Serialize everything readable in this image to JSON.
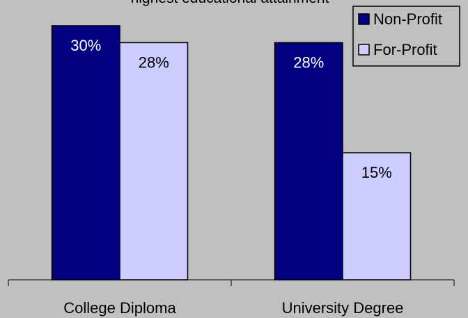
{
  "chart_data": {
    "type": "bar",
    "title": "highest educational attainment",
    "categories": [
      "College Diploma",
      "University Degree"
    ],
    "series": [
      {
        "name": "Non-Profit",
        "color": "#000080",
        "values": [
          30,
          28
        ],
        "value_labels": [
          "30%",
          "28%"
        ]
      },
      {
        "name": "For-Profit",
        "color": "#ccccff",
        "values": [
          28,
          15
        ],
        "value_labels": [
          "28%",
          "15%"
        ]
      }
    ],
    "ylim": [
      0,
      30
    ],
    "legend": "top-right"
  }
}
